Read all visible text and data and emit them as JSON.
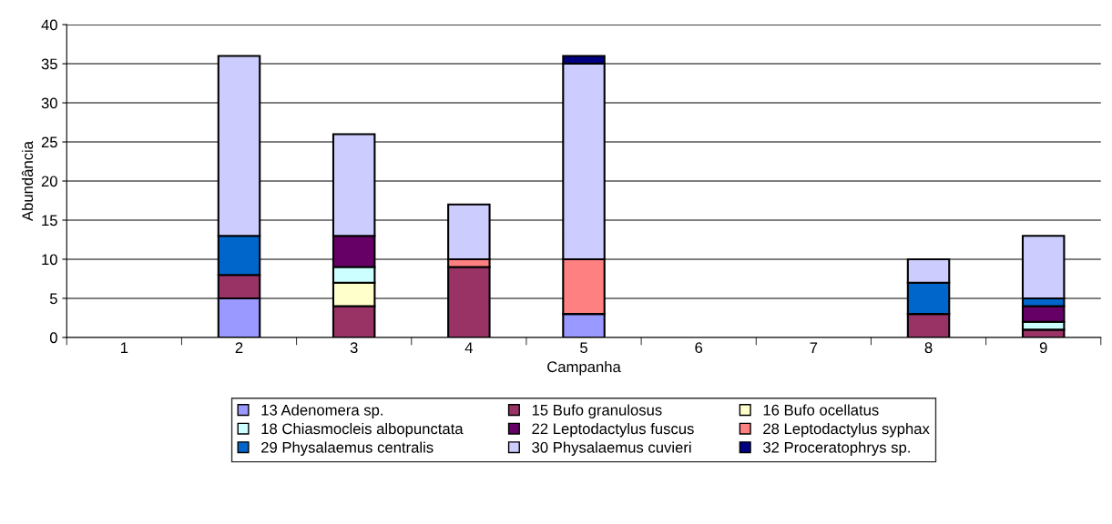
{
  "chart_data": {
    "type": "bar",
    "stacked": true,
    "xlabel": "Campanha",
    "ylabel": "Abundância",
    "categories": [
      "1",
      "2",
      "3",
      "4",
      "5",
      "6",
      "7",
      "8",
      "9"
    ],
    "ylim": [
      0,
      40
    ],
    "yticks": [
      0,
      5,
      10,
      15,
      20,
      25,
      30,
      35,
      40
    ],
    "grid": "y",
    "legend": "bottom",
    "series": [
      {
        "name": "13 Adenomera sp.",
        "color": "#9999ff",
        "values": [
          null,
          5,
          null,
          null,
          3,
          null,
          null,
          null,
          null
        ]
      },
      {
        "name": "15 Bufo granulosus",
        "color": "#993366",
        "values": [
          null,
          3,
          4,
          9,
          null,
          null,
          null,
          3,
          1
        ]
      },
      {
        "name": "16 Bufo ocellatus",
        "color": "#ffffcc",
        "values": [
          null,
          null,
          3,
          null,
          null,
          null,
          null,
          null,
          null
        ]
      },
      {
        "name": "18 Chiasmocleis albopunctata",
        "color": "#ccffff",
        "values": [
          null,
          null,
          2,
          null,
          null,
          null,
          null,
          null,
          1
        ]
      },
      {
        "name": "22 Leptodactylus fuscus",
        "color": "#660066",
        "values": [
          null,
          null,
          4,
          null,
          null,
          null,
          null,
          null,
          2
        ]
      },
      {
        "name": "28 Leptodactylus syphax",
        "color": "#ff8080",
        "values": [
          null,
          null,
          null,
          1,
          7,
          null,
          null,
          null,
          null
        ]
      },
      {
        "name": "29 Physalaemus centralis",
        "color": "#0066cc",
        "values": [
          null,
          5,
          null,
          null,
          null,
          null,
          null,
          4,
          1
        ]
      },
      {
        "name": "30 Physalaemus cuvieri",
        "color": "#ccccff",
        "values": [
          null,
          23,
          13,
          7,
          25,
          null,
          null,
          3,
          8
        ]
      },
      {
        "name": "32 Proceratophrys sp.",
        "color": "#000080",
        "values": [
          null,
          null,
          null,
          null,
          1,
          null,
          null,
          null,
          null
        ]
      }
    ]
  }
}
